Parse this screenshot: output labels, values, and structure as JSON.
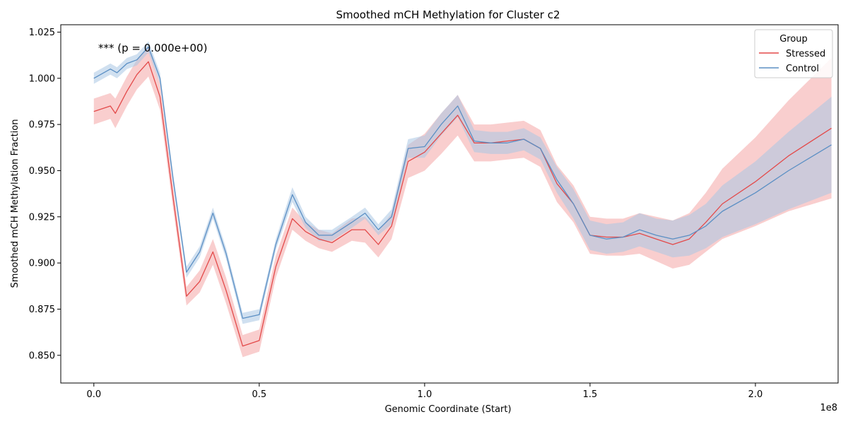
{
  "chart_data": {
    "type": "line",
    "title": "Smoothed mCH Methylation for Cluster c2",
    "xlabel": "Genomic Coordinate (Start)",
    "ylabel": "Smoothed mCH Methylation Fraction",
    "x_offset_label": "1e8",
    "annotation": "*** (p = 0.000e+00)",
    "xlim": [
      -0.1,
      2.25
    ],
    "ylim": [
      0.835,
      1.029
    ],
    "xticks": [
      0.0,
      0.5,
      1.0,
      1.5,
      2.0
    ],
    "xtick_labels": [
      "0.0",
      "0.5",
      "1.0",
      "1.5",
      "2.0"
    ],
    "yticks": [
      0.85,
      0.875,
      0.9,
      0.925,
      0.95,
      0.975,
      1.0,
      1.025
    ],
    "ytick_labels": [
      "0.850",
      "0.875",
      "0.900",
      "0.925",
      "0.950",
      "0.975",
      "1.000",
      "1.025"
    ],
    "grid": false,
    "legend": {
      "title": "Group",
      "position": "top-right"
    },
    "series": [
      {
        "name": "Stressed",
        "color": "#e34a4a",
        "band_color": "#f4a6a6",
        "points": [
          [
            0.0,
            0.982
          ],
          [
            0.05,
            0.985
          ],
          [
            0.065,
            0.981
          ],
          [
            0.1,
            0.993
          ],
          [
            0.13,
            1.002
          ],
          [
            0.165,
            1.009
          ],
          [
            0.2,
            0.99
          ],
          [
            0.24,
            0.935
          ],
          [
            0.28,
            0.882
          ],
          [
            0.32,
            0.89
          ],
          [
            0.36,
            0.906
          ],
          [
            0.4,
            0.885
          ],
          [
            0.45,
            0.855
          ],
          [
            0.5,
            0.858
          ],
          [
            0.55,
            0.898
          ],
          [
            0.6,
            0.924
          ],
          [
            0.64,
            0.917
          ],
          [
            0.68,
            0.913
          ],
          [
            0.72,
            0.911
          ],
          [
            0.78,
            0.918
          ],
          [
            0.82,
            0.918
          ],
          [
            0.86,
            0.91
          ],
          [
            0.9,
            0.92
          ],
          [
            0.95,
            0.955
          ],
          [
            1.0,
            0.96
          ],
          [
            1.05,
            0.97
          ],
          [
            1.1,
            0.98
          ],
          [
            1.15,
            0.965
          ],
          [
            1.2,
            0.965
          ],
          [
            1.25,
            0.966
          ],
          [
            1.3,
            0.967
          ],
          [
            1.35,
            0.962
          ],
          [
            1.4,
            0.943
          ],
          [
            1.45,
            0.932
          ],
          [
            1.5,
            0.915
          ],
          [
            1.55,
            0.914
          ],
          [
            1.6,
            0.914
          ],
          [
            1.65,
            0.916
          ],
          [
            1.7,
            0.913
          ],
          [
            1.75,
            0.91
          ],
          [
            1.8,
            0.913
          ],
          [
            1.85,
            0.922
          ],
          [
            1.9,
            0.932
          ],
          [
            2.0,
            0.944
          ],
          [
            2.1,
            0.958
          ],
          [
            2.23,
            0.973
          ]
        ],
        "band_width": [
          0.007,
          0.007,
          0.008,
          0.008,
          0.008,
          0.008,
          0.007,
          0.006,
          0.005,
          0.006,
          0.007,
          0.007,
          0.006,
          0.006,
          0.006,
          0.006,
          0.005,
          0.005,
          0.005,
          0.006,
          0.007,
          0.007,
          0.007,
          0.009,
          0.01,
          0.011,
          0.011,
          0.01,
          0.01,
          0.01,
          0.01,
          0.01,
          0.01,
          0.01,
          0.01,
          0.01,
          0.01,
          0.011,
          0.012,
          0.013,
          0.014,
          0.016,
          0.019,
          0.024,
          0.03,
          0.038
        ]
      },
      {
        "name": "Control",
        "color": "#5b8fc4",
        "band_color": "#a9c6e3",
        "points": [
          [
            0.0,
            1.0
          ],
          [
            0.05,
            1.005
          ],
          [
            0.07,
            1.003
          ],
          [
            0.1,
            1.008
          ],
          [
            0.13,
            1.01
          ],
          [
            0.165,
            1.017
          ],
          [
            0.2,
            1.0
          ],
          [
            0.24,
            0.945
          ],
          [
            0.28,
            0.895
          ],
          [
            0.32,
            0.906
          ],
          [
            0.36,
            0.927
          ],
          [
            0.4,
            0.905
          ],
          [
            0.45,
            0.87
          ],
          [
            0.5,
            0.872
          ],
          [
            0.55,
            0.91
          ],
          [
            0.6,
            0.937
          ],
          [
            0.64,
            0.922
          ],
          [
            0.68,
            0.915
          ],
          [
            0.72,
            0.915
          ],
          [
            0.78,
            0.922
          ],
          [
            0.82,
            0.927
          ],
          [
            0.86,
            0.918
          ],
          [
            0.9,
            0.925
          ],
          [
            0.95,
            0.962
          ],
          [
            1.0,
            0.963
          ],
          [
            1.05,
            0.975
          ],
          [
            1.1,
            0.985
          ],
          [
            1.15,
            0.966
          ],
          [
            1.2,
            0.965
          ],
          [
            1.25,
            0.965
          ],
          [
            1.3,
            0.967
          ],
          [
            1.35,
            0.962
          ],
          [
            1.4,
            0.945
          ],
          [
            1.45,
            0.932
          ],
          [
            1.5,
            0.915
          ],
          [
            1.55,
            0.913
          ],
          [
            1.6,
            0.914
          ],
          [
            1.65,
            0.918
          ],
          [
            1.7,
            0.915
          ],
          [
            1.75,
            0.913
          ],
          [
            1.8,
            0.915
          ],
          [
            1.85,
            0.92
          ],
          [
            1.9,
            0.928
          ],
          [
            2.0,
            0.938
          ],
          [
            2.1,
            0.95
          ],
          [
            2.23,
            0.964
          ]
        ],
        "band_width": [
          0.003,
          0.003,
          0.003,
          0.003,
          0.003,
          0.003,
          0.003,
          0.003,
          0.003,
          0.003,
          0.003,
          0.003,
          0.003,
          0.003,
          0.003,
          0.004,
          0.003,
          0.003,
          0.003,
          0.003,
          0.003,
          0.003,
          0.004,
          0.005,
          0.006,
          0.006,
          0.006,
          0.006,
          0.006,
          0.006,
          0.006,
          0.006,
          0.007,
          0.008,
          0.008,
          0.008,
          0.008,
          0.009,
          0.009,
          0.01,
          0.011,
          0.012,
          0.014,
          0.017,
          0.021,
          0.026
        ]
      }
    ]
  }
}
